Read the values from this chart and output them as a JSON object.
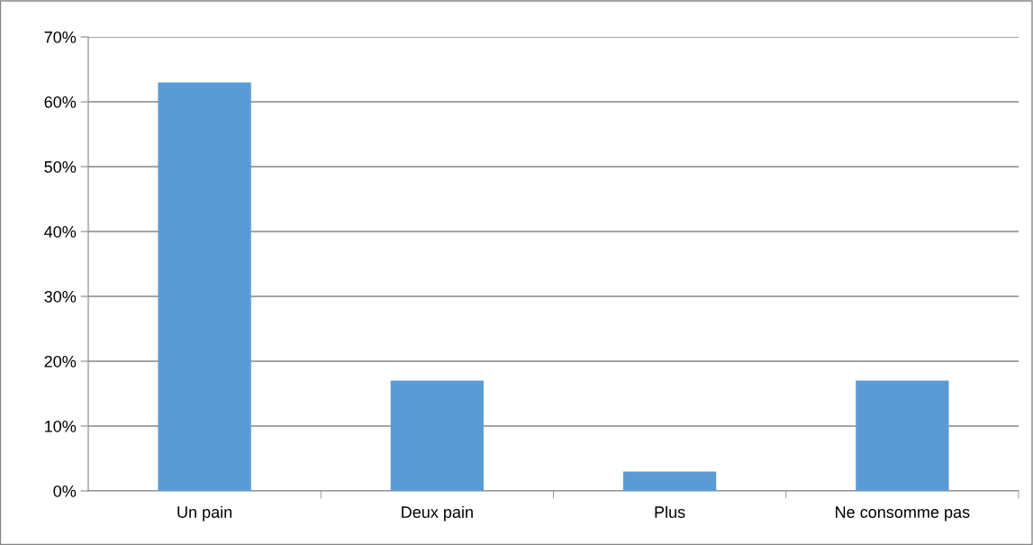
{
  "chart_data": {
    "type": "bar",
    "categories": [
      "Un pain",
      "Deux pain",
      "Plus",
      "Ne consomme pas"
    ],
    "values": [
      63,
      17,
      3,
      17
    ],
    "color": "#5b9bd5",
    "ylim": [
      0,
      70
    ],
    "yticks": [
      {
        "value": 0,
        "label": "0%"
      },
      {
        "value": 10,
        "label": "10%"
      },
      {
        "value": 20,
        "label": "20%"
      },
      {
        "value": 30,
        "label": "30%"
      },
      {
        "value": 40,
        "label": "40%"
      },
      {
        "value": 50,
        "label": "50%"
      },
      {
        "value": 60,
        "label": "60%"
      },
      {
        "value": 70,
        "label": "70%"
      }
    ],
    "grid": "y",
    "legend": false
  }
}
